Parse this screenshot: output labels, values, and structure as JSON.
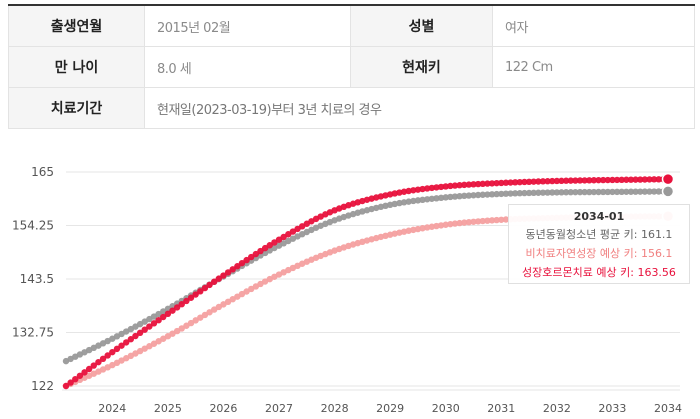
{
  "info": {
    "birth_label": "출생연월",
    "birth_value": "2015년 02월",
    "gender_label": "성별",
    "gender_value": "여자",
    "age_label": "만 나이",
    "age_value": "8.0 세",
    "height_label": "현재키",
    "height_value": "122 Cm",
    "period_label": "치료기간",
    "period_value": "현재일(2023-03-19)부터 3년 치료의 경우"
  },
  "tooltip": {
    "title": "2034-01",
    "average": "동년동월청소년 평균 키: 161.1",
    "natural": "비치료자연성장 예상 키: 156.1",
    "treatment": "성장호르몬치료 예상 키: 163.56"
  },
  "chart_data": {
    "type": "line",
    "x_range": [
      "2023-03",
      "2034-01"
    ],
    "x_ticks": [
      "2024",
      "2025",
      "2026",
      "2027",
      "2028",
      "2029",
      "2030",
      "2031",
      "2032",
      "2033",
      "2034"
    ],
    "y_ticks": [
      "122",
      "132.75",
      "143.5",
      "154.25",
      "165"
    ],
    "ylim": [
      122,
      165
    ],
    "series": [
      {
        "name": "동년동월청소년 평균 키",
        "color": "#999999",
        "x": [
          "2023-03",
          "2024-01",
          "2025-01",
          "2026-01",
          "2027-01",
          "2028-01",
          "2029-01",
          "2030-01",
          "2031-01",
          "2032-01",
          "2033-01",
          "2034-01"
        ],
        "values": [
          127.0,
          131.5,
          137.5,
          144.0,
          150.2,
          155.3,
          158.4,
          159.9,
          160.6,
          160.9,
          161.0,
          161.1
        ]
      },
      {
        "name": "비치료자연성장 예상 키",
        "color": "#f4a0a0",
        "x": [
          "2023-03",
          "2024-01",
          "2025-01",
          "2026-01",
          "2027-01",
          "2028-01",
          "2029-01",
          "2030-01",
          "2031-01",
          "2032-01",
          "2033-01",
          "2034-01"
        ],
        "values": [
          122.0,
          126.2,
          132.0,
          138.4,
          144.4,
          149.2,
          152.4,
          154.4,
          155.4,
          155.8,
          156.0,
          156.1
        ]
      },
      {
        "name": "성장호르몬치료 예상 키",
        "color": "#e8113c",
        "x": [
          "2023-03",
          "2024-01",
          "2025-01",
          "2026-01",
          "2027-01",
          "2028-01",
          "2029-01",
          "2030-01",
          "2031-01",
          "2032-01",
          "2033-01",
          "2034-01"
        ],
        "values": [
          122.0,
          128.8,
          136.5,
          144.2,
          151.4,
          157.3,
          160.5,
          162.1,
          162.8,
          163.2,
          163.4,
          163.56
        ]
      }
    ]
  }
}
